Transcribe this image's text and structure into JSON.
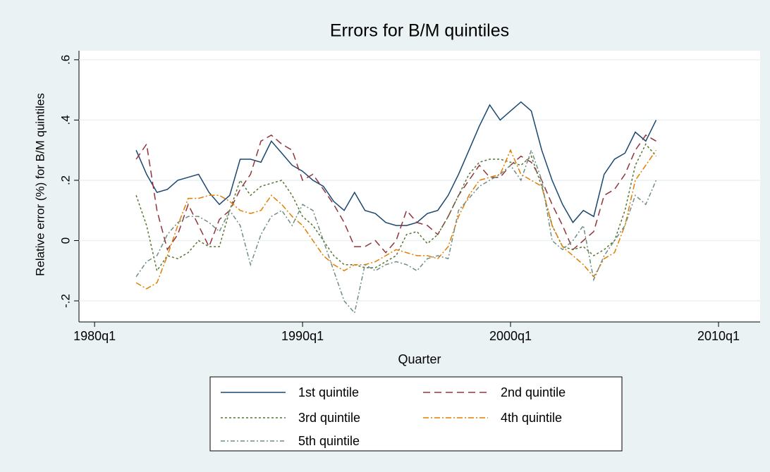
{
  "chart_data": {
    "type": "line",
    "title": "Errors for B/M quintiles",
    "x_label": "Quarter",
    "y_label": "Relative error (%) for B/M quintiles",
    "x": [
      "1982q1",
      "1982q3",
      "1983q1",
      "1983q3",
      "1984q1",
      "1984q3",
      "1985q1",
      "1985q3",
      "1986q1",
      "1986q3",
      "1987q1",
      "1987q3",
      "1988q1",
      "1988q3",
      "1989q1",
      "1989q3",
      "1990q1",
      "1990q3",
      "1991q1",
      "1991q3",
      "1992q1",
      "1992q3",
      "1993q1",
      "1993q3",
      "1994q1",
      "1994q3",
      "1995q1",
      "1995q3",
      "1996q1",
      "1996q3",
      "1997q1",
      "1997q3",
      "1998q1",
      "1998q3",
      "1999q1",
      "1999q3",
      "2000q1",
      "2000q3",
      "2001q1",
      "2001q3",
      "2002q1",
      "2002q3",
      "2003q1",
      "2003q3",
      "2004q1",
      "2004q3",
      "2005q1",
      "2005q3",
      "2006q1",
      "2006q3",
      "2007q1"
    ],
    "series": [
      {
        "name": "1st quintile",
        "color": "#1a476f",
        "dash": "none",
        "values": [
          0.3,
          0.22,
          0.16,
          0.17,
          0.2,
          0.21,
          0.22,
          0.16,
          0.12,
          0.15,
          0.27,
          0.27,
          0.26,
          0.33,
          0.29,
          0.25,
          0.23,
          0.2,
          0.18,
          0.13,
          0.1,
          0.16,
          0.1,
          0.09,
          0.06,
          0.05,
          0.05,
          0.06,
          0.09,
          0.1,
          0.15,
          0.22,
          0.3,
          0.38,
          0.45,
          0.4,
          0.43,
          0.46,
          0.43,
          0.3,
          0.2,
          0.12,
          0.06,
          0.1,
          0.08,
          0.22,
          0.27,
          0.29,
          0.36,
          0.33,
          0.4
        ]
      },
      {
        "name": "2nd quintile",
        "color": "#90353b",
        "dash": "10,6",
        "values": [
          0.27,
          0.32,
          0.1,
          -0.03,
          0.02,
          0.12,
          0.05,
          -0.02,
          0.07,
          0.1,
          0.17,
          0.22,
          0.33,
          0.35,
          0.32,
          0.3,
          0.2,
          0.22,
          0.17,
          0.12,
          0.06,
          -0.02,
          -0.02,
          0.0,
          -0.04,
          0.0,
          0.1,
          0.06,
          0.05,
          0.02,
          0.08,
          0.15,
          0.2,
          0.25,
          0.21,
          0.21,
          0.25,
          0.28,
          0.26,
          0.2,
          0.12,
          0.05,
          -0.03,
          0.0,
          0.03,
          0.15,
          0.17,
          0.22,
          0.3,
          0.35,
          0.33
        ]
      },
      {
        "name": "3rd quintile",
        "color": "#55752f",
        "dash": "3,3",
        "values": [
          0.15,
          0.05,
          -0.1,
          -0.05,
          -0.06,
          -0.04,
          0.0,
          -0.02,
          -0.02,
          0.1,
          0.2,
          0.15,
          0.18,
          0.19,
          0.2,
          0.15,
          0.08,
          0.05,
          0.0,
          -0.05,
          -0.08,
          -0.08,
          -0.09,
          -0.09,
          -0.07,
          -0.05,
          0.02,
          0.03,
          -0.01,
          0.02,
          0.08,
          0.15,
          0.22,
          0.26,
          0.27,
          0.27,
          0.26,
          0.25,
          0.28,
          0.18,
          0.05,
          -0.02,
          -0.03,
          -0.02,
          -0.05,
          -0.03,
          0.0,
          0.1,
          0.25,
          0.32,
          0.28
        ]
      },
      {
        "name": "4th quintile",
        "color": "#e37e00",
        "dash": "8,3,2,3",
        "values": [
          -0.14,
          -0.16,
          -0.14,
          -0.05,
          0.05,
          0.14,
          0.14,
          0.15,
          0.15,
          0.13,
          0.1,
          0.09,
          0.1,
          0.15,
          0.12,
          0.08,
          0.05,
          0.0,
          -0.05,
          -0.08,
          -0.1,
          -0.08,
          -0.08,
          -0.07,
          -0.05,
          -0.03,
          -0.04,
          -0.05,
          -0.05,
          -0.06,
          -0.02,
          0.08,
          0.15,
          0.2,
          0.21,
          0.22,
          0.3,
          0.22,
          0.2,
          0.18,
          0.05,
          -0.02,
          -0.05,
          -0.08,
          -0.12,
          -0.06,
          -0.04,
          0.05,
          0.2,
          0.25,
          0.3
        ]
      },
      {
        "name": "5th quintile",
        "color": "#6e8e84",
        "dash": "6,3,2,3",
        "values": [
          -0.12,
          -0.07,
          -0.05,
          0.02,
          0.06,
          0.08,
          0.08,
          0.06,
          0.03,
          0.1,
          0.05,
          -0.08,
          0.02,
          0.08,
          0.1,
          0.05,
          0.12,
          0.1,
          0.0,
          -0.1,
          -0.2,
          -0.24,
          -0.08,
          -0.1,
          -0.08,
          -0.07,
          -0.08,
          -0.1,
          -0.06,
          -0.05,
          -0.06,
          0.1,
          0.14,
          0.18,
          0.2,
          0.22,
          0.25,
          0.2,
          0.3,
          0.2,
          0.0,
          -0.03,
          0.0,
          0.05,
          -0.13,
          -0.05,
          0.0,
          0.05,
          0.15,
          0.12,
          0.2
        ]
      }
    ],
    "xlim": [
      "1979q2",
      "2012q1"
    ],
    "xticks": [
      "1980q1",
      "1990q1",
      "2000q1",
      "2010q1"
    ],
    "ylim": [
      -0.27,
      0.63
    ],
    "yticks": [
      {
        "value": -0.2,
        "label": "-.2"
      },
      0,
      {
        "value": 0.2,
        "label": ".2"
      },
      {
        "value": 0.4,
        "label": ".4"
      },
      {
        "value": 0.6,
        "label": ".6"
      }
    ],
    "grid": true,
    "legend": "bottom"
  }
}
